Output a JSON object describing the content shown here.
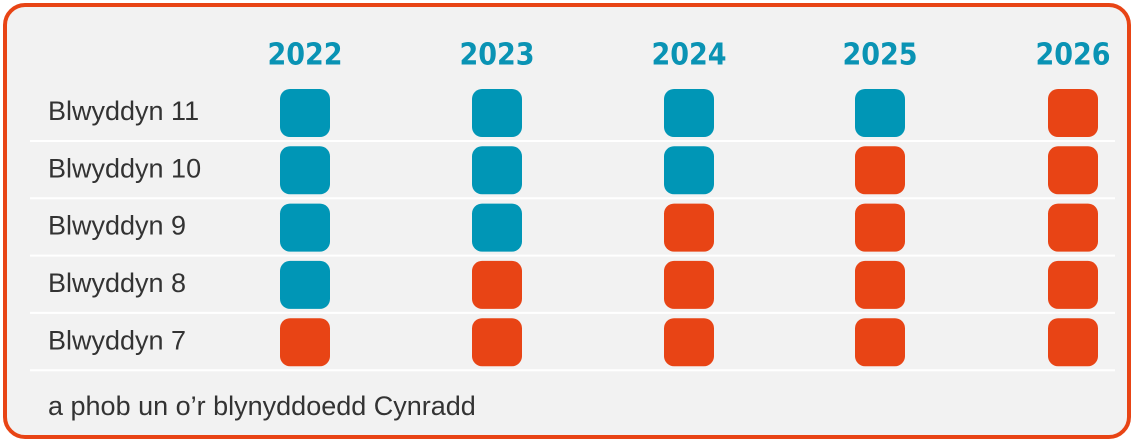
{
  "years": [
    "2022",
    "2023",
    "2024",
    "2025",
    "2026"
  ],
  "rows": [
    {
      "label": "Blwyddyn 11",
      "cells": [
        "#0096b6",
        "#0096b6",
        "#0096b6",
        "#0096b6",
        "#e84415"
      ]
    },
    {
      "label": "Blwyddyn 10",
      "cells": [
        "#0096b6",
        "#0096b6",
        "#0096b6",
        "#e84415",
        "#e84415"
      ]
    },
    {
      "label": "Blwyddyn 9",
      "cells": [
        "#0096b6",
        "#0096b6",
        "#e84415",
        "#e84415",
        "#e84415"
      ]
    },
    {
      "label": "Blwyddyn 8",
      "cells": [
        "#0096b6",
        "#e84415",
        "#e84415",
        "#e84415",
        "#e84415"
      ]
    },
    {
      "label": "Blwyddyn 7",
      "cells": [
        "#e84415",
        "#e84415",
        "#e84415",
        "#e84415",
        "#e84415"
      ]
    }
  ],
  "footer": "a phob un o’r blynyddoedd Cynradd"
}
